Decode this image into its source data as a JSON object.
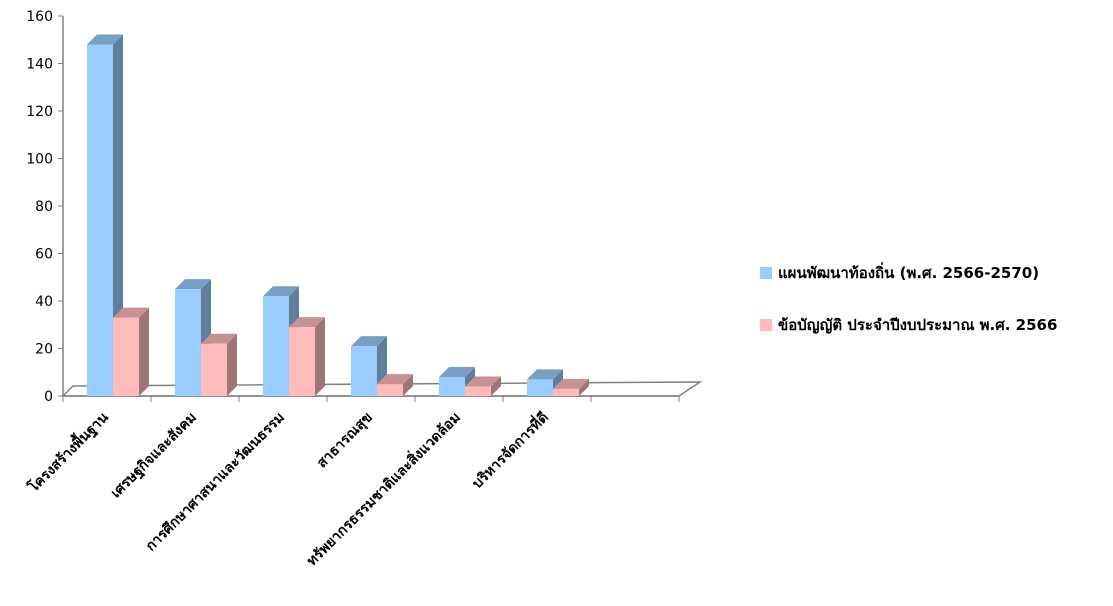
{
  "chart_data": {
    "type": "bar",
    "title": "",
    "xlabel": "",
    "ylabel": "",
    "ylim": [
      0,
      160
    ],
    "yticks": [
      0,
      20,
      40,
      60,
      80,
      100,
      120,
      140,
      160
    ],
    "categories": [
      "โครงสร้างพื้นฐาน",
      "เศรษฐกิจและสังคม",
      "การศึกษาศาสนาและวัฒนธรรม",
      "สาธารณสุข",
      "ทรัพยากรธรรมชาติและสิ่งแวดล้อม",
      "บริหารจัดการที่ดี"
    ],
    "series": [
      {
        "name": "แผนพัฒนาท้องถิ่น (พ.ศ. 2566-2570)",
        "color": "#99ccff",
        "values": [
          148,
          45,
          42,
          21,
          8,
          7
        ]
      },
      {
        "name": "ข้อบัญญัติ ประจำปีงบประมาณ พ.ศ. 2566",
        "color": "#ffbbbb",
        "values": [
          33,
          22,
          29,
          5,
          4,
          3
        ]
      }
    ],
    "grid": false,
    "legend_position": "right",
    "style": "3d-column"
  }
}
